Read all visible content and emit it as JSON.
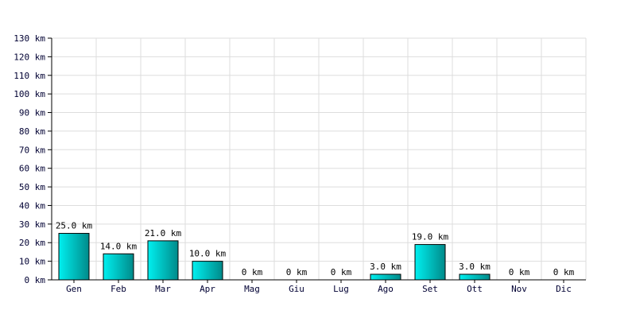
{
  "chart_data": {
    "type": "bar",
    "categories": [
      "Gen",
      "Feb",
      "Mar",
      "Apr",
      "Mag",
      "Giu",
      "Lug",
      "Ago",
      "Set",
      "Ott",
      "Nov",
      "Dic"
    ],
    "values": [
      25.0,
      14.0,
      21.0,
      10.0,
      0,
      0,
      0,
      3.0,
      19.0,
      3.0,
      0,
      0
    ],
    "value_labels": [
      "25.0 km",
      "14.0 km",
      "21.0 km",
      "10.0 km",
      "0 km",
      "0 km",
      "0 km",
      "3.0 km",
      "19.0 km",
      "3.0 km",
      "0 km",
      "0 km"
    ],
    "yticks": [
      0,
      10,
      20,
      30,
      40,
      50,
      60,
      70,
      80,
      90,
      100,
      110,
      120,
      130
    ],
    "ytick_labels": [
      "0 km",
      "10 km",
      "20 km",
      "30 km",
      "40 km",
      "50 km",
      "60 km",
      "70 km",
      "80 km",
      "90 km",
      "100 km",
      "110 km",
      "120 km",
      "130 km"
    ],
    "ylim": [
      0,
      130
    ],
    "grid": true,
    "title": "",
    "xlabel": "",
    "ylabel": "",
    "colors": {
      "bar_fill_light": "#00f0f0",
      "bar_fill_dark": "#008a8a",
      "bar_stroke": "#000000",
      "grid": "#dddddd",
      "axis": "#000000"
    }
  }
}
